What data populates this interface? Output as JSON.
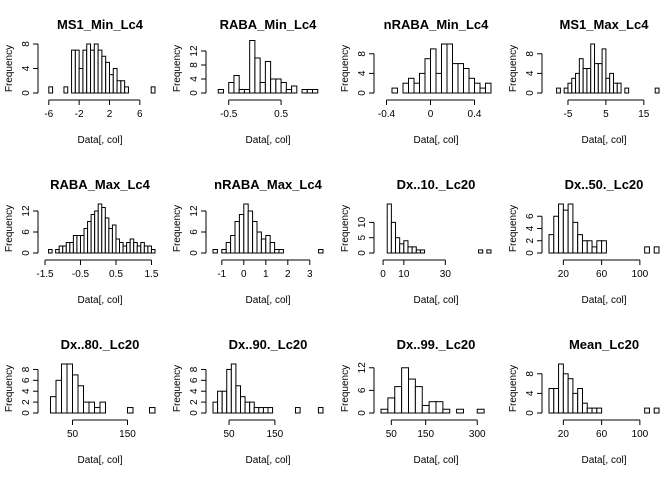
{
  "chart_data": [
    {
      "type": "bar",
      "title": "MS1_Min_Lc4",
      "xlabel": "Data[, col]",
      "ylabel": "Frequency",
      "breaks": [
        -6.5,
        -6,
        -5.5,
        -5,
        -4.5,
        -4,
        -3.5,
        -3,
        -2.5,
        -2,
        -1.5,
        -1,
        -0.5,
        0,
        0.5,
        1,
        1.5,
        2,
        2.5,
        3,
        3.5,
        4,
        4.5,
        5,
        5.5,
        6,
        6.5,
        7,
        7.5,
        8
      ],
      "values": [
        0,
        1,
        0,
        0,
        0,
        1,
        0,
        7,
        7,
        4,
        7,
        8,
        7,
        8,
        7,
        6,
        5,
        3,
        4,
        2,
        2,
        1,
        0,
        0,
        0,
        0,
        0,
        0,
        1
      ],
      "xticks": [
        -6,
        -2,
        2,
        6
      ],
      "xlim": [
        -6.5,
        8
      ],
      "yticks": [
        0,
        4,
        8
      ],
      "ylim": [
        0,
        8
      ]
    },
    {
      "type": "bar",
      "title": "RABA_Min_Lc4",
      "xlabel": "Data[, col]",
      "ylabel": "Frequency",
      "breaks": [
        -0.8,
        -0.7,
        -0.6,
        -0.5,
        -0.4,
        -0.3,
        -0.2,
        -0.1,
        0,
        0.1,
        0.2,
        0.3,
        0.4,
        0.5,
        0.6,
        0.7,
        0.8,
        0.9,
        1,
        1.1,
        1.2,
        1.3
      ],
      "values": [
        0,
        1,
        0,
        3,
        5,
        1,
        1,
        15,
        10,
        3,
        9,
        4,
        4,
        3,
        1,
        2,
        0,
        1,
        1,
        1,
        0
      ],
      "xticks": [
        -0.5,
        0.5
      ],
      "xlim": [
        -0.8,
        1.3
      ],
      "yticks": [
        0,
        4,
        8,
        12
      ],
      "ylim": [
        0,
        14
      ]
    },
    {
      "type": "bar",
      "title": "nRABA_Min_Lc4",
      "xlabel": "Data[, col]",
      "ylabel": "Frequency",
      "breaks": [
        -0.45,
        -0.4,
        -0.35,
        -0.3,
        -0.25,
        -0.2,
        -0.15,
        -0.1,
        -0.05,
        0,
        0.05,
        0.1,
        0.15,
        0.2,
        0.25,
        0.3,
        0.35,
        0.4,
        0.45,
        0.5,
        0.55
      ],
      "values": [
        0,
        0,
        1,
        0,
        2,
        3,
        2,
        4,
        7,
        9,
        4,
        10,
        10,
        6,
        6,
        5,
        3,
        2,
        1,
        2
      ],
      "xticks": [
        -0.4,
        0,
        0.4
      ],
      "xlim": [
        -0.45,
        0.55
      ],
      "yticks": [
        0,
        4,
        8
      ],
      "ylim": [
        0,
        10
      ]
    },
    {
      "type": "bar",
      "title": "MS1_Max_Lc4",
      "xlabel": "Data[, col]",
      "ylabel": "Frequency",
      "breaks": [
        -10,
        -9,
        -8,
        -7,
        -6,
        -5,
        -4,
        -3,
        -2,
        -1,
        0,
        1,
        2,
        3,
        4,
        5,
        6,
        7,
        8,
        9,
        10,
        11,
        12,
        13,
        14,
        15,
        16,
        17,
        18,
        19
      ],
      "values": [
        0,
        0,
        1,
        0,
        1,
        2,
        3,
        4,
        7,
        5,
        5,
        10,
        6,
        6,
        9,
        3,
        4,
        2,
        2,
        0,
        1,
        0,
        0,
        0,
        0,
        0,
        0,
        0,
        1
      ],
      "xticks": [
        -5,
        5,
        15
      ],
      "xlim": [
        -10,
        19
      ],
      "yticks": [
        0,
        4,
        8
      ],
      "ylim": [
        0,
        10
      ]
    },
    {
      "type": "bar",
      "title": "RABA_Max_Lc4",
      "xlabel": "Data[, col]",
      "ylabel": "Frequency",
      "breaks": [
        -1.5,
        -1.4,
        -1.3,
        -1.2,
        -1.1,
        -1,
        -0.9,
        -0.8,
        -0.7,
        -0.6,
        -0.5,
        -0.4,
        -0.3,
        -0.2,
        -0.1,
        0,
        0.1,
        0.2,
        0.3,
        0.4,
        0.5,
        0.6,
        0.7,
        0.8,
        0.9,
        1,
        1.1,
        1.2,
        1.3,
        1.4,
        1.5,
        1.6
      ],
      "values": [
        0,
        1,
        0,
        1,
        2,
        2,
        3,
        3,
        5,
        5,
        5,
        7,
        9,
        11,
        12,
        14,
        13,
        10,
        7,
        8,
        4,
        3,
        2,
        3,
        4,
        3,
        2,
        3,
        2,
        2,
        1
      ],
      "xticks": [
        -1.5,
        -0.5,
        0.5,
        1.5
      ],
      "xlim": [
        -1.5,
        1.6
      ],
      "yticks": [
        0,
        6,
        12
      ],
      "ylim": [
        0,
        14
      ]
    },
    {
      "type": "bar",
      "title": "nRABA_Max_Lc4",
      "xlabel": "Data[, col]",
      "ylabel": "Frequency",
      "breaks": [
        -1.4,
        -1.2,
        -1,
        -0.8,
        -0.6,
        -0.4,
        -0.2,
        0,
        0.2,
        0.4,
        0.6,
        0.8,
        1,
        1.2,
        1.4,
        1.6,
        1.8,
        2,
        2.2,
        2.4,
        2.6,
        2.8,
        3,
        3.2,
        3.4,
        3.6
      ],
      "values": [
        1,
        0,
        1,
        3,
        5,
        9,
        11,
        14,
        12,
        9,
        6,
        4,
        5,
        3,
        1,
        1,
        0,
        0,
        0,
        0,
        0,
        0,
        0,
        0,
        1
      ],
      "xticks": [
        -1,
        0,
        1,
        2,
        3
      ],
      "xlim": [
        -1.4,
        3.6
      ],
      "yticks": [
        0,
        6,
        12
      ],
      "ylim": [
        0,
        14
      ]
    },
    {
      "type": "bar",
      "title": "Dx..10._Lc20",
      "xlabel": "Data[, col]",
      "ylabel": "Frequency",
      "breaks": [
        2,
        4,
        6,
        8,
        10,
        12,
        14,
        16,
        18,
        20,
        22,
        24,
        26,
        28,
        30,
        32,
        34,
        36,
        38,
        40,
        42,
        44,
        46,
        48,
        50,
        52
      ],
      "values": [
        16,
        10,
        5,
        3,
        4,
        2,
        2,
        1,
        1,
        0,
        0,
        0,
        0,
        0,
        0,
        0,
        0,
        0,
        0,
        0,
        0,
        0,
        1,
        0,
        1
      ],
      "xticks": [
        0,
        10,
        30
      ],
      "xlim": [
        -1,
        52
      ],
      "yticks": [
        0,
        5,
        10
      ],
      "ylim": [
        0,
        16
      ]
    },
    {
      "type": "bar",
      "title": "Dx..50._Lc20",
      "xlabel": "Data[, col]",
      "ylabel": "Frequency",
      "breaks": [
        5,
        10,
        15,
        20,
        25,
        30,
        35,
        40,
        45,
        50,
        55,
        60,
        65,
        70,
        75,
        80,
        85,
        90,
        95,
        100,
        105,
        110,
        115,
        120
      ],
      "values": [
        3,
        6,
        8,
        7,
        8,
        5,
        3,
        2,
        2,
        1,
        2,
        2,
        0,
        0,
        0,
        0,
        0,
        0,
        0,
        0,
        1,
        0,
        1
      ],
      "xticks": [
        20,
        60,
        100
      ],
      "xlim": [
        5,
        120
      ],
      "yticks": [
        0,
        2,
        4,
        6
      ],
      "ylim": [
        0,
        8
      ]
    },
    {
      "type": "bar",
      "title": "Dx..80._Lc20",
      "xlabel": "Data[, col]",
      "ylabel": "Frequency",
      "breaks": [
        10,
        20,
        30,
        40,
        50,
        60,
        70,
        80,
        90,
        100,
        110,
        120,
        130,
        140,
        150,
        160,
        170,
        180,
        190,
        200
      ],
      "values": [
        3,
        6,
        9,
        9,
        7,
        5,
        2,
        2,
        1,
        2,
        0,
        0,
        0,
        0,
        1,
        0,
        0,
        0,
        1
      ],
      "xticks": [
        50,
        150
      ],
      "xlim": [
        0,
        200
      ],
      "yticks": [
        0,
        2,
        4,
        6,
        8
      ],
      "ylim": [
        0,
        9
      ]
    },
    {
      "type": "bar",
      "title": "Dx..90._Lc20",
      "xlabel": "Data[, col]",
      "ylabel": "Frequency",
      "breaks": [
        15,
        25,
        35,
        45,
        55,
        65,
        75,
        85,
        95,
        105,
        115,
        125,
        135,
        145,
        155,
        165,
        175,
        185,
        195,
        205,
        215,
        225,
        235,
        245,
        255
      ],
      "values": [
        2,
        4,
        4,
        8,
        9,
        5,
        3,
        2,
        2,
        1,
        1,
        1,
        1,
        0,
        0,
        0,
        0,
        0,
        1,
        0,
        0,
        0,
        0,
        1
      ],
      "xticks": [
        50,
        150
      ],
      "xlim": [
        15,
        255
      ],
      "yticks": [
        0,
        2,
        4,
        6,
        8
      ],
      "ylim": [
        0,
        9
      ]
    },
    {
      "type": "bar",
      "title": "Dx..99._Lc20",
      "xlabel": "Data[, col]",
      "ylabel": "Frequency",
      "breaks": [
        20,
        40,
        60,
        80,
        100,
        120,
        140,
        160,
        180,
        200,
        220,
        240,
        260,
        280,
        300,
        320,
        340
      ],
      "values": [
        1,
        4,
        7,
        12,
        9,
        7,
        2,
        3,
        3,
        1,
        0,
        1,
        0,
        0,
        1,
        0
      ],
      "xticks": [
        50,
        150,
        300
      ],
      "xlim": [
        20,
        340
      ],
      "yticks": [
        0,
        6,
        12
      ],
      "ylim": [
        0,
        13
      ]
    },
    {
      "type": "bar",
      "title": "Mean_Lc20",
      "xlabel": "Data[, col]",
      "ylabel": "Frequency",
      "breaks": [
        5,
        10,
        15,
        20,
        25,
        30,
        35,
        40,
        45,
        50,
        55,
        60,
        65,
        70,
        75,
        80,
        85,
        90,
        95,
        100,
        105,
        110,
        115,
        120
      ],
      "values": [
        5,
        5,
        10,
        8,
        7,
        4,
        5,
        2,
        1,
        1,
        1,
        0,
        0,
        0,
        0,
        0,
        0,
        0,
        0,
        0,
        1,
        0,
        1
      ],
      "xticks": [
        20,
        60,
        100
      ],
      "xlim": [
        5,
        120
      ],
      "yticks": [
        0,
        4,
        8
      ],
      "ylim": [
        0,
        10
      ]
    }
  ]
}
